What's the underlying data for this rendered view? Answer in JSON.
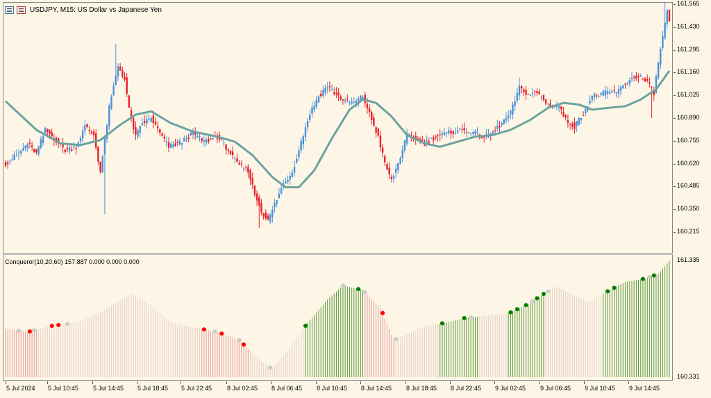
{
  "window": {
    "symbol_title": "USDJPY, M15:  US Dollar vs Japanese Yen",
    "indicator_title": "Conqueror(10,20,60) 157.887 0.000 0.000 0.000"
  },
  "icons": {
    "chart_icon_1": "chart-window-icon",
    "chart_icon_2": "chart-properties-icon"
  },
  "colors": {
    "background": "#fdf6e6",
    "bull_candle": "#4a90d9",
    "bear_candle": "#e8202a",
    "moving_average": "#6aa3a0",
    "histogram_red": "#e89a9a",
    "histogram_green": "#5a9a3a",
    "histogram_neutral": "#e6cfc8",
    "dot_red": "#ff0000",
    "dot_green": "#008000",
    "dot_grey": "#cccccc"
  },
  "price_axis": {
    "main_labels": [
      "161.565",
      "161.430",
      "161.295",
      "161.160",
      "161.025",
      "160.890",
      "160.755",
      "160.620",
      "160.485",
      "160.350",
      "160.215"
    ],
    "sub_labels": [
      "161.335",
      "160.331"
    ]
  },
  "time_axis": {
    "labels": [
      "5 Jul 2024",
      "5 Jul 10:45",
      "5 Jul 14:45",
      "5 Jul 18:45",
      "5 Jul 22:45",
      "8 Jul 02:45",
      "8 Jul 06:45",
      "8 Jul 10:45",
      "8 Jul 14:45",
      "8 Jul 18:45",
      "8 Jul 22:45",
      "9 Jul 02:45",
      "9 Jul 06:45",
      "9 Jul 10:45",
      "9 Jul 14:45"
    ]
  },
  "chart_data": {
    "type": "candlestick",
    "price_range": [
      160.16,
      161.6
    ],
    "sub_range": [
      160.331,
      161.335
    ],
    "ma_keypoints": [
      [
        0,
        160.99
      ],
      [
        14,
        160.82
      ],
      [
        25,
        160.74
      ],
      [
        34,
        160.73
      ],
      [
        43,
        160.76
      ],
      [
        52,
        160.85
      ],
      [
        59,
        160.91
      ],
      [
        66,
        160.93
      ],
      [
        75,
        160.86
      ],
      [
        85,
        160.81
      ],
      [
        96,
        160.78
      ],
      [
        104,
        160.75
      ],
      [
        112,
        160.67
      ],
      [
        121,
        160.54
      ],
      [
        127,
        160.48
      ],
      [
        133,
        160.48
      ],
      [
        140,
        160.58
      ],
      [
        148,
        160.77
      ],
      [
        156,
        160.94
      ],
      [
        162,
        161.0
      ],
      [
        168,
        160.98
      ],
      [
        175,
        160.9
      ],
      [
        182,
        160.79
      ],
      [
        190,
        160.74
      ],
      [
        197,
        160.72
      ],
      [
        205,
        160.75
      ],
      [
        213,
        160.78
      ],
      [
        221,
        160.79
      ],
      [
        229,
        160.82
      ],
      [
        238,
        160.88
      ],
      [
        246,
        160.95
      ],
      [
        253,
        160.98
      ],
      [
        260,
        160.97
      ],
      [
        266,
        160.94
      ],
      [
        273,
        160.95
      ],
      [
        281,
        160.96
      ],
      [
        288,
        161.0
      ],
      [
        295,
        161.06
      ],
      [
        301,
        161.17
      ]
    ],
    "histogram_keypoints": [
      [
        0,
        160.75
      ],
      [
        10,
        160.72
      ],
      [
        20,
        160.77
      ],
      [
        32,
        160.8
      ],
      [
        44,
        160.9
      ],
      [
        57,
        161.05
      ],
      [
        66,
        160.95
      ],
      [
        75,
        160.8
      ],
      [
        85,
        160.76
      ],
      [
        96,
        160.72
      ],
      [
        106,
        160.65
      ],
      [
        115,
        160.48
      ],
      [
        121,
        160.4
      ],
      [
        128,
        160.56
      ],
      [
        137,
        160.8
      ],
      [
        146,
        161.0
      ],
      [
        153,
        161.12
      ],
      [
        162,
        161.08
      ],
      [
        170,
        160.93
      ],
      [
        176,
        160.65
      ],
      [
        182,
        160.7
      ],
      [
        190,
        160.77
      ],
      [
        200,
        160.8
      ],
      [
        208,
        160.84
      ],
      [
        218,
        160.86
      ],
      [
        228,
        160.88
      ],
      [
        237,
        160.96
      ],
      [
        245,
        161.06
      ],
      [
        250,
        161.11
      ],
      [
        257,
        161.04
      ],
      [
        265,
        160.98
      ],
      [
        273,
        161.07
      ],
      [
        281,
        161.15
      ],
      [
        290,
        161.18
      ],
      [
        296,
        161.22
      ],
      [
        301,
        161.33
      ]
    ],
    "histogram_segments": [
      {
        "from": 0,
        "to": 14,
        "state": "red"
      },
      {
        "from": 15,
        "to": 88,
        "state": "neutral"
      },
      {
        "from": 89,
        "to": 110,
        "state": "red"
      },
      {
        "from": 111,
        "to": 135,
        "state": "neutral"
      },
      {
        "from": 136,
        "to": 162,
        "state": "green"
      },
      {
        "from": 163,
        "to": 176,
        "state": "red"
      },
      {
        "from": 177,
        "to": 196,
        "state": "neutral"
      },
      {
        "from": 197,
        "to": 214,
        "state": "green"
      },
      {
        "from": 215,
        "to": 227,
        "state": "neutral"
      },
      {
        "from": 228,
        "to": 244,
        "state": "green"
      },
      {
        "from": 245,
        "to": 270,
        "state": "neutral"
      },
      {
        "from": 271,
        "to": 301,
        "state": "green"
      }
    ],
    "dots": [
      {
        "i": 6,
        "state": "grey"
      },
      {
        "i": 11,
        "state": "red"
      },
      {
        "i": 13,
        "state": "grey"
      },
      {
        "i": 21,
        "state": "red"
      },
      {
        "i": 24,
        "state": "red"
      },
      {
        "i": 28,
        "state": "grey"
      },
      {
        "i": 90,
        "state": "red"
      },
      {
        "i": 95,
        "state": "grey"
      },
      {
        "i": 98,
        "state": "red"
      },
      {
        "i": 106,
        "state": "grey"
      },
      {
        "i": 108,
        "state": "red"
      },
      {
        "i": 120,
        "state": "grey"
      },
      {
        "i": 136,
        "state": "green"
      },
      {
        "i": 153,
        "state": "grey"
      },
      {
        "i": 160,
        "state": "green"
      },
      {
        "i": 163,
        "state": "grey"
      },
      {
        "i": 171,
        "state": "red"
      },
      {
        "i": 177,
        "state": "grey"
      },
      {
        "i": 198,
        "state": "green"
      },
      {
        "i": 208,
        "state": "green"
      },
      {
        "i": 211,
        "state": "grey"
      },
      {
        "i": 229,
        "state": "green"
      },
      {
        "i": 232,
        "state": "green"
      },
      {
        "i": 236,
        "state": "green"
      },
      {
        "i": 239,
        "state": "grey"
      },
      {
        "i": 241,
        "state": "green"
      },
      {
        "i": 244,
        "state": "green"
      },
      {
        "i": 246,
        "state": "grey"
      },
      {
        "i": 273,
        "state": "green"
      },
      {
        "i": 276,
        "state": "green"
      },
      {
        "i": 289,
        "state": "green"
      },
      {
        "i": 292,
        "state": "grey"
      },
      {
        "i": 294,
        "state": "green"
      }
    ],
    "candle_count": 302,
    "price_keypoints": [
      [
        0,
        160.62
      ],
      [
        6,
        160.68
      ],
      [
        10,
        160.74
      ],
      [
        14,
        160.68
      ],
      [
        18,
        160.82
      ],
      [
        22,
        160.77
      ],
      [
        27,
        160.7
      ],
      [
        32,
        160.72
      ],
      [
        36,
        160.84
      ],
      [
        40,
        160.79
      ],
      [
        43,
        160.57
      ],
      [
        47,
        160.95
      ],
      [
        51,
        161.2
      ],
      [
        54,
        161.12
      ],
      [
        56,
        160.94
      ],
      [
        59,
        160.78
      ],
      [
        62,
        160.86
      ],
      [
        66,
        160.89
      ],
      [
        70,
        160.8
      ],
      [
        74,
        160.72
      ],
      [
        80,
        160.75
      ],
      [
        85,
        160.8
      ],
      [
        90,
        160.75
      ],
      [
        96,
        160.78
      ],
      [
        101,
        160.7
      ],
      [
        105,
        160.62
      ],
      [
        110,
        160.58
      ],
      [
        113,
        160.44
      ],
      [
        116,
        160.34
      ],
      [
        119,
        160.28
      ],
      [
        122,
        160.38
      ],
      [
        126,
        160.5
      ],
      [
        130,
        160.57
      ],
      [
        134,
        160.75
      ],
      [
        138,
        160.92
      ],
      [
        142,
        161.02
      ],
      [
        146,
        161.08
      ],
      [
        150,
        161.03
      ],
      [
        154,
        160.99
      ],
      [
        158,
        160.98
      ],
      [
        162,
        161.02
      ],
      [
        166,
        160.88
      ],
      [
        169,
        160.78
      ],
      [
        172,
        160.62
      ],
      [
        175,
        160.52
      ],
      [
        178,
        160.62
      ],
      [
        182,
        160.79
      ],
      [
        186,
        160.77
      ],
      [
        190,
        160.74
      ],
      [
        195,
        160.78
      ],
      [
        200,
        160.8
      ],
      [
        206,
        160.82
      ],
      [
        211,
        160.81
      ],
      [
        216,
        160.78
      ],
      [
        220,
        160.79
      ],
      [
        225,
        160.86
      ],
      [
        229,
        160.92
      ],
      [
        233,
        161.07
      ],
      [
        237,
        161.03
      ],
      [
        241,
        161.04
      ],
      [
        246,
        160.97
      ],
      [
        251,
        160.96
      ],
      [
        254,
        160.88
      ],
      [
        258,
        160.84
      ],
      [
        262,
        160.92
      ],
      [
        266,
        161.02
      ],
      [
        272,
        161.04
      ],
      [
        278,
        161.05
      ],
      [
        283,
        161.12
      ],
      [
        287,
        161.14
      ],
      [
        291,
        161.1
      ],
      [
        294,
        161.04
      ],
      [
        297,
        161.3
      ],
      [
        300,
        161.52
      ],
      [
        301,
        161.45
      ]
    ],
    "spikes": [
      {
        "i": 45,
        "low": 160.32
      },
      {
        "i": 50,
        "high": 161.33
      },
      {
        "i": 115,
        "low": 160.24
      },
      {
        "i": 233,
        "high": 161.13
      },
      {
        "i": 293,
        "low": 160.89
      },
      {
        "i": 299,
        "high": 161.58
      }
    ]
  }
}
